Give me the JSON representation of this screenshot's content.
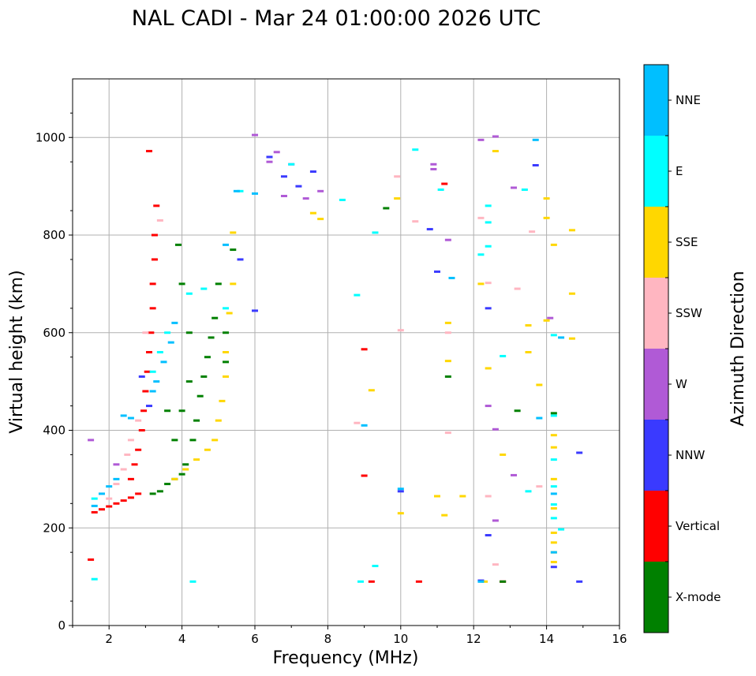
{
  "chart_data": {
    "type": "scatter",
    "title": "NAL CADI - Mar 24 01:00:00 2026 UTC",
    "xlabel": "Frequency (MHz)",
    "ylabel": "Virtual height (km)",
    "xlim": [
      1,
      16
    ],
    "ylim": [
      0,
      1120
    ],
    "grid": true,
    "x_ticks": [
      {
        "value": 2,
        "label": "2"
      },
      {
        "value": 4,
        "label": "4"
      },
      {
        "value": 6,
        "label": "6"
      },
      {
        "value": 8,
        "label": "8"
      },
      {
        "value": 10,
        "label": "10"
      },
      {
        "value": 12,
        "label": "12"
      },
      {
        "value": 14,
        "label": "14"
      },
      {
        "value": 16,
        "label": "16"
      }
    ],
    "y_ticks": [
      {
        "value": 0,
        "label": "0"
      },
      {
        "value": 200,
        "label": "200"
      },
      {
        "value": 400,
        "label": "400"
      },
      {
        "value": 600,
        "label": "600"
      },
      {
        "value": 800,
        "label": "800"
      },
      {
        "value": 1000,
        "label": "1000"
      }
    ],
    "colorbar": {
      "label": "Azimuth Direction",
      "categories": [
        {
          "name": "X-mode",
          "color": "#008000"
        },
        {
          "name": "Vertical",
          "color": "#ff0000"
        },
        {
          "name": "NNW",
          "color": "#3a3aff"
        },
        {
          "name": "W",
          "color": "#b05ad6"
        },
        {
          "name": "SSW",
          "color": "#ffb6c1"
        },
        {
          "name": "SSE",
          "color": "#ffd700"
        },
        {
          "name": "E",
          "color": "#00ffff"
        },
        {
          "name": "NNE",
          "color": "#00bfff"
        }
      ]
    },
    "series": [
      {
        "name": "Vertical",
        "points": [
          [
            1.6,
            232
          ],
          [
            1.8,
            238
          ],
          [
            2.0,
            244
          ],
          [
            2.2,
            250
          ],
          [
            2.4,
            256
          ],
          [
            2.6,
            262
          ],
          [
            2.8,
            270
          ],
          [
            2.6,
            300
          ],
          [
            2.7,
            330
          ],
          [
            2.8,
            360
          ],
          [
            2.9,
            400
          ],
          [
            2.95,
            440
          ],
          [
            3.0,
            480
          ],
          [
            3.05,
            520
          ],
          [
            3.1,
            560
          ],
          [
            3.15,
            600
          ],
          [
            3.2,
            650
          ],
          [
            3.2,
            700
          ],
          [
            3.25,
            750
          ],
          [
            3.25,
            800
          ],
          [
            3.3,
            860
          ],
          [
            3.1,
            972
          ],
          [
            9.0,
            566
          ],
          [
            9.0,
            307
          ],
          [
            9.2,
            90
          ],
          [
            10.5,
            90
          ],
          [
            11.2,
            905
          ],
          [
            12.8,
            90
          ],
          [
            1.5,
            135
          ]
        ]
      },
      {
        "name": "X-mode",
        "points": [
          [
            3.2,
            270
          ],
          [
            3.4,
            275
          ],
          [
            3.6,
            290
          ],
          [
            3.8,
            300
          ],
          [
            4.0,
            310
          ],
          [
            4.1,
            330
          ],
          [
            4.3,
            380
          ],
          [
            4.4,
            420
          ],
          [
            4.5,
            470
          ],
          [
            4.6,
            510
          ],
          [
            4.7,
            550
          ],
          [
            4.8,
            590
          ],
          [
            4.9,
            630
          ],
          [
            5.0,
            700
          ],
          [
            5.2,
            540
          ],
          [
            5.2,
            600
          ],
          [
            3.8,
            380
          ],
          [
            4.0,
            440
          ],
          [
            4.2,
            500
          ],
          [
            4.2,
            600
          ],
          [
            4.0,
            700
          ],
          [
            3.9,
            780
          ],
          [
            5.4,
            770
          ],
          [
            3.6,
            440
          ],
          [
            9.6,
            855
          ],
          [
            13.2,
            440
          ],
          [
            11.3,
            510
          ],
          [
            12.8,
            90
          ],
          [
            14.2,
            435
          ]
        ]
      },
      {
        "name": "NNW",
        "points": [
          [
            2.9,
            510
          ],
          [
            3.1,
            450
          ],
          [
            5.6,
            750
          ],
          [
            6.0,
            645
          ],
          [
            6.8,
            920
          ],
          [
            7.2,
            900
          ],
          [
            7.6,
            930
          ],
          [
            10.8,
            812
          ],
          [
            10.0,
            275
          ],
          [
            11.0,
            725
          ],
          [
            12.4,
            650
          ],
          [
            12.4,
            185
          ],
          [
            12.2,
            92
          ],
          [
            13.7,
            943
          ],
          [
            14.2,
            120
          ],
          [
            14.9,
            354
          ],
          [
            14.9,
            90
          ],
          [
            6.4,
            960
          ]
        ]
      },
      {
        "name": "W",
        "points": [
          [
            1.5,
            380
          ],
          [
            2.2,
            330
          ],
          [
            6.0,
            1005
          ],
          [
            6.4,
            950
          ],
          [
            6.6,
            970
          ],
          [
            6.8,
            880
          ],
          [
            7.0,
            945
          ],
          [
            7.4,
            875
          ],
          [
            7.8,
            890
          ],
          [
            10.9,
            945
          ],
          [
            10.9,
            935
          ],
          [
            11.3,
            790
          ],
          [
            12.2,
            995
          ],
          [
            12.6,
            1002
          ],
          [
            13.1,
            897
          ],
          [
            12.6,
            402
          ],
          [
            12.4,
            450
          ],
          [
            14.1,
            630
          ],
          [
            13.1,
            308
          ],
          [
            12.6,
            215
          ]
        ]
      },
      {
        "name": "SSW",
        "points": [
          [
            2.0,
            260
          ],
          [
            2.2,
            290
          ],
          [
            2.4,
            320
          ],
          [
            2.5,
            350
          ],
          [
            2.6,
            380
          ],
          [
            2.8,
            420
          ],
          [
            3.0,
            600
          ],
          [
            3.4,
            830
          ],
          [
            10.0,
            605
          ],
          [
            10.4,
            828
          ],
          [
            11.3,
            600
          ],
          [
            11.3,
            395
          ],
          [
            12.2,
            835
          ],
          [
            12.4,
            702
          ],
          [
            12.4,
            265
          ],
          [
            12.6,
            125
          ],
          [
            13.2,
            690
          ],
          [
            13.6,
            807
          ],
          [
            13.8,
            285
          ],
          [
            8.8,
            415
          ],
          [
            9.9,
            920
          ]
        ]
      },
      {
        "name": "SSE",
        "points": [
          [
            3.8,
            300
          ],
          [
            4.1,
            320
          ],
          [
            4.4,
            340
          ],
          [
            4.7,
            360
          ],
          [
            4.9,
            380
          ],
          [
            5.0,
            420
          ],
          [
            5.1,
            460
          ],
          [
            5.2,
            510
          ],
          [
            5.2,
            560
          ],
          [
            5.3,
            640
          ],
          [
            5.4,
            700
          ],
          [
            5.4,
            805
          ],
          [
            7.6,
            845
          ],
          [
            7.8,
            833
          ],
          [
            9.2,
            482
          ],
          [
            9.9,
            875
          ],
          [
            11.3,
            620
          ],
          [
            11.3,
            542
          ],
          [
            12.2,
            700
          ],
          [
            12.4,
            527
          ],
          [
            12.6,
            972
          ],
          [
            12.8,
            350
          ],
          [
            13.5,
            615
          ],
          [
            13.5,
            560
          ],
          [
            13.8,
            493
          ],
          [
            14.0,
            625
          ],
          [
            14.0,
            875
          ],
          [
            14.0,
            835
          ],
          [
            14.2,
            780
          ],
          [
            14.2,
            390
          ],
          [
            14.2,
            365
          ],
          [
            14.2,
            300
          ],
          [
            14.2,
            240
          ],
          [
            14.2,
            190
          ],
          [
            14.2,
            170
          ],
          [
            14.2,
            150
          ],
          [
            14.2,
            130
          ],
          [
            14.7,
            810
          ],
          [
            14.7,
            680
          ],
          [
            14.7,
            588
          ],
          [
            10.0,
            230
          ],
          [
            11.0,
            265
          ],
          [
            11.2,
            226
          ],
          [
            11.7,
            265
          ],
          [
            12.3,
            90
          ]
        ]
      },
      {
        "name": "E",
        "points": [
          [
            1.6,
            260
          ],
          [
            3.2,
            520
          ],
          [
            3.4,
            560
          ],
          [
            3.6,
            600
          ],
          [
            4.2,
            680
          ],
          [
            4.6,
            690
          ],
          [
            5.2,
            650
          ],
          [
            5.6,
            890
          ],
          [
            7.0,
            945
          ],
          [
            8.4,
            872
          ],
          [
            8.8,
            677
          ],
          [
            9.3,
            805
          ],
          [
            9.3,
            122
          ],
          [
            10.4,
            975
          ],
          [
            11.1,
            893
          ],
          [
            12.4,
            860
          ],
          [
            12.4,
            826
          ],
          [
            12.4,
            777
          ],
          [
            12.8,
            552
          ],
          [
            13.4,
            893
          ],
          [
            13.5,
            275
          ],
          [
            14.2,
            595
          ],
          [
            14.2,
            430
          ],
          [
            14.2,
            340
          ],
          [
            14.2,
            285
          ],
          [
            14.2,
            248
          ],
          [
            14.2,
            220
          ],
          [
            14.4,
            197
          ],
          [
            12.2,
            760
          ],
          [
            1.6,
            95
          ],
          [
            4.3,
            90
          ],
          [
            8.9,
            90
          ]
        ]
      },
      {
        "name": "NNE",
        "points": [
          [
            1.6,
            245
          ],
          [
            1.8,
            270
          ],
          [
            2.0,
            285
          ],
          [
            2.2,
            300
          ],
          [
            2.4,
            430
          ],
          [
            2.6,
            425
          ],
          [
            3.2,
            480
          ],
          [
            3.3,
            500
          ],
          [
            3.5,
            540
          ],
          [
            3.7,
            580
          ],
          [
            3.8,
            620
          ],
          [
            5.2,
            780
          ],
          [
            6.0,
            885
          ],
          [
            9.0,
            410
          ],
          [
            10.0,
            280
          ],
          [
            11.4,
            712
          ],
          [
            12.2,
            90
          ],
          [
            13.7,
            995
          ],
          [
            13.8,
            425
          ],
          [
            14.2,
            270
          ],
          [
            14.2,
            150
          ],
          [
            14.4,
            590
          ],
          [
            5.5,
            890
          ]
        ]
      }
    ]
  }
}
